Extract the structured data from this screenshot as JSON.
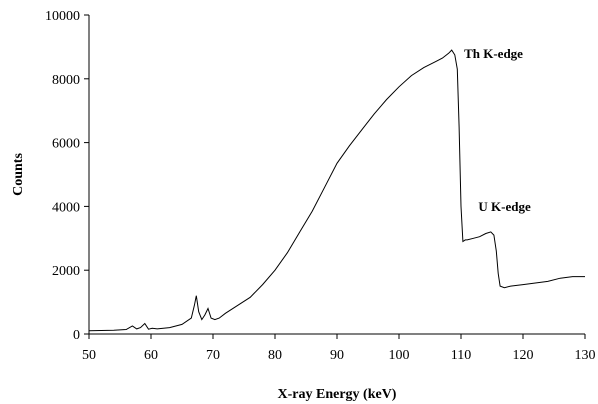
{
  "chart_data": {
    "type": "line",
    "xlabel": "X-ray Energy (keV)",
    "ylabel": "Counts",
    "xlim": [
      50,
      130
    ],
    "ylim": [
      0,
      10000
    ],
    "xticks": [
      50,
      60,
      70,
      80,
      90,
      100,
      110,
      120,
      130
    ],
    "yticks": [
      0,
      2000,
      4000,
      6000,
      8000,
      10000
    ],
    "grid": false,
    "annotations": [
      {
        "text": "Th K-edge",
        "x": 110.5,
        "y": 8650
      },
      {
        "text": "U K-edge",
        "x": 112.8,
        "y": 3850
      }
    ],
    "series": [
      {
        "x": [
          50,
          52,
          54,
          56,
          57,
          57.7,
          58.3,
          59,
          59.6,
          60.2,
          61,
          63,
          65,
          66.5,
          67,
          67.3,
          67.7,
          68.2,
          68.7,
          69.2,
          69.7,
          70.3,
          71,
          72,
          74,
          76,
          78,
          80,
          82,
          84,
          86,
          88,
          90,
          92,
          94,
          96,
          98,
          100,
          102,
          104,
          106,
          107,
          108,
          108.5,
          109,
          109.4,
          109.7,
          110,
          110.3,
          110.7,
          111,
          112,
          113,
          114,
          114.8,
          115.3,
          115.7,
          116,
          116.3,
          117,
          118,
          120,
          122,
          124,
          126,
          128,
          130
        ],
        "y": [
          100,
          110,
          120,
          140,
          250,
          160,
          200,
          330,
          150,
          180,
          160,
          200,
          300,
          500,
          900,
          1200,
          700,
          450,
          600,
          800,
          500,
          450,
          500,
          650,
          900,
          1150,
          1550,
          2000,
          2550,
          3200,
          3850,
          4600,
          5350,
          5900,
          6400,
          6900,
          7350,
          7750,
          8100,
          8350,
          8550,
          8650,
          8800,
          8900,
          8750,
          8300,
          6500,
          4000,
          2900,
          2950,
          2950,
          3000,
          3050,
          3150,
          3200,
          3100,
          2600,
          1900,
          1500,
          1450,
          1500,
          1550,
          1600,
          1650,
          1750,
          1800,
          1800
        ]
      }
    ]
  }
}
